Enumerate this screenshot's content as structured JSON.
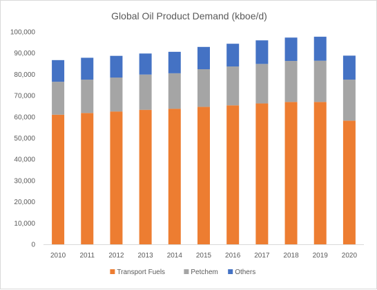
{
  "chart_data": {
    "type": "bar",
    "stacked": true,
    "title": "Global Oil Product Demand (kboe/d)",
    "xlabel": "",
    "ylabel": "",
    "categories": [
      "2010",
      "2011",
      "2012",
      "2013",
      "2014",
      "2015",
      "2016",
      "2017",
      "2018",
      "2019",
      "2020"
    ],
    "series": [
      {
        "name": "Transport Fuels",
        "color": "#ED7D31",
        "values": [
          61000,
          61800,
          62500,
          63300,
          63800,
          64700,
          65400,
          66300,
          67000,
          67000,
          58200
        ]
      },
      {
        "name": "Petchem",
        "color": "#A5A5A5",
        "values": [
          15500,
          15700,
          16000,
          16600,
          16700,
          17700,
          18300,
          18600,
          19300,
          19400,
          19300
        ]
      },
      {
        "name": "Others",
        "color": "#4472C4",
        "values": [
          10200,
          10300,
          10200,
          9900,
          10100,
          10500,
          10700,
          11100,
          11000,
          11300,
          11300
        ]
      }
    ],
    "ylim": [
      0,
      100000
    ],
    "yticks": [
      "0",
      "10,000",
      "20,000",
      "30,000",
      "40,000",
      "50,000",
      "60,000",
      "70,000",
      "80,000",
      "90,000",
      "100,000"
    ],
    "grid": false,
    "legend_position": "bottom"
  }
}
